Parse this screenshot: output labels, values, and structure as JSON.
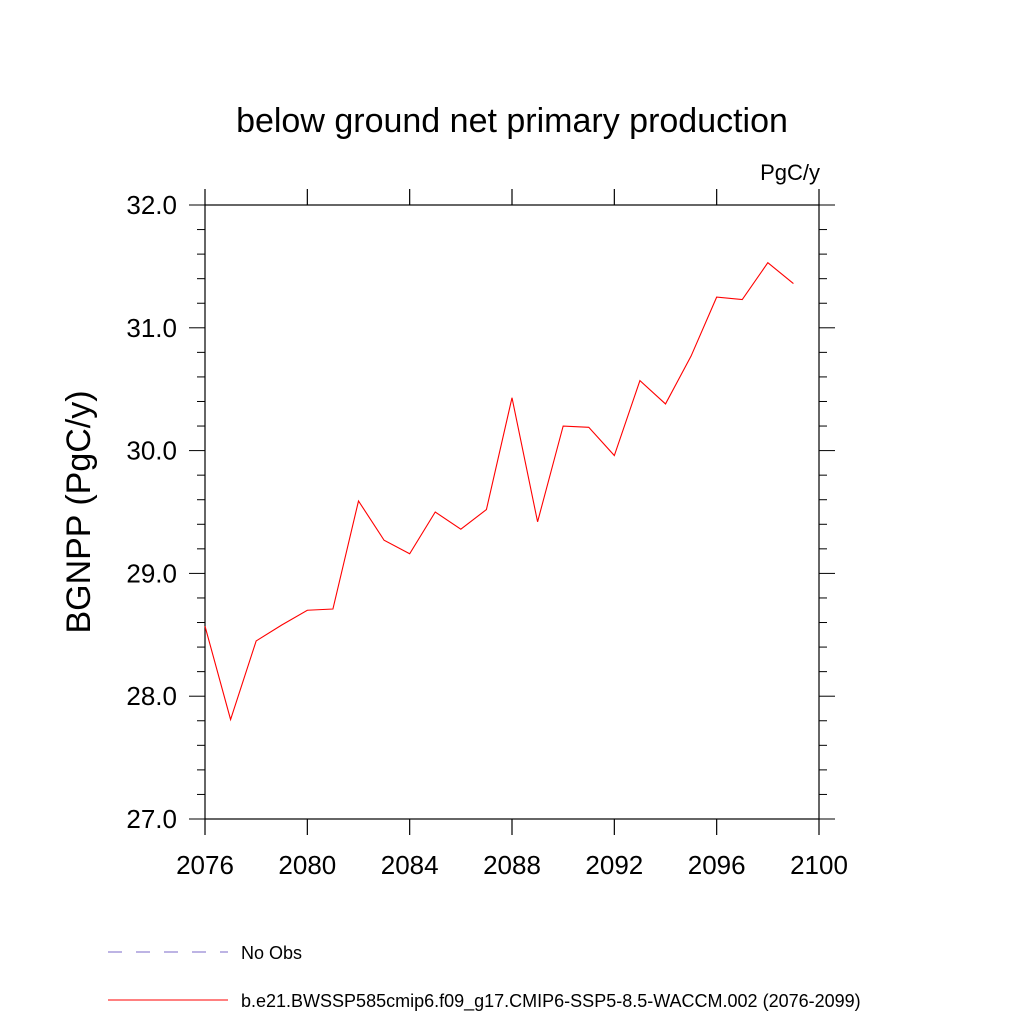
{
  "chart_data": {
    "type": "line",
    "title": "below ground net primary production",
    "units_label": "PgC/y",
    "ylabel": "BGNPP  (PgC/y)",
    "xlabel": "",
    "xlim": [
      2076,
      2100
    ],
    "ylim": [
      27.0,
      32.0
    ],
    "x_ticks": [
      "2076",
      "2080",
      "2084",
      "2088",
      "2092",
      "2096",
      "2100"
    ],
    "y_ticks": [
      "27.0",
      "28.0",
      "29.0",
      "30.0",
      "31.0",
      "32.0"
    ],
    "grid": false,
    "legend_position": "bottom",
    "x": [
      2076,
      2077,
      2078,
      2079,
      2080,
      2081,
      2082,
      2083,
      2084,
      2085,
      2086,
      2087,
      2088,
      2089,
      2090,
      2091,
      2092,
      2093,
      2094,
      2095,
      2096,
      2097,
      2098,
      2099
    ],
    "series": [
      {
        "name": "b.e21.BWSSP585cmip6.f09_g17.CMIP6-SSP5-8.5-WACCM.002 (2076-2099)",
        "color": "#ff0000",
        "style": "solid",
        "values": [
          28.57,
          27.81,
          28.45,
          28.58,
          28.7,
          28.71,
          29.59,
          29.27,
          29.16,
          29.5,
          29.36,
          29.52,
          30.43,
          29.42,
          30.2,
          30.19,
          29.96,
          30.57,
          30.38,
          30.77,
          31.25,
          31.23,
          31.53,
          31.36
        ]
      }
    ],
    "legend": [
      {
        "label": "No Obs",
        "color": "#7b68c8",
        "style": "dashed"
      },
      {
        "label": "b.e21.BWSSP585cmip6.f09_g17.CMIP6-SSP5-8.5-WACCM.002 (2076-2099)",
        "color": "#ff0000",
        "style": "solid"
      }
    ]
  }
}
